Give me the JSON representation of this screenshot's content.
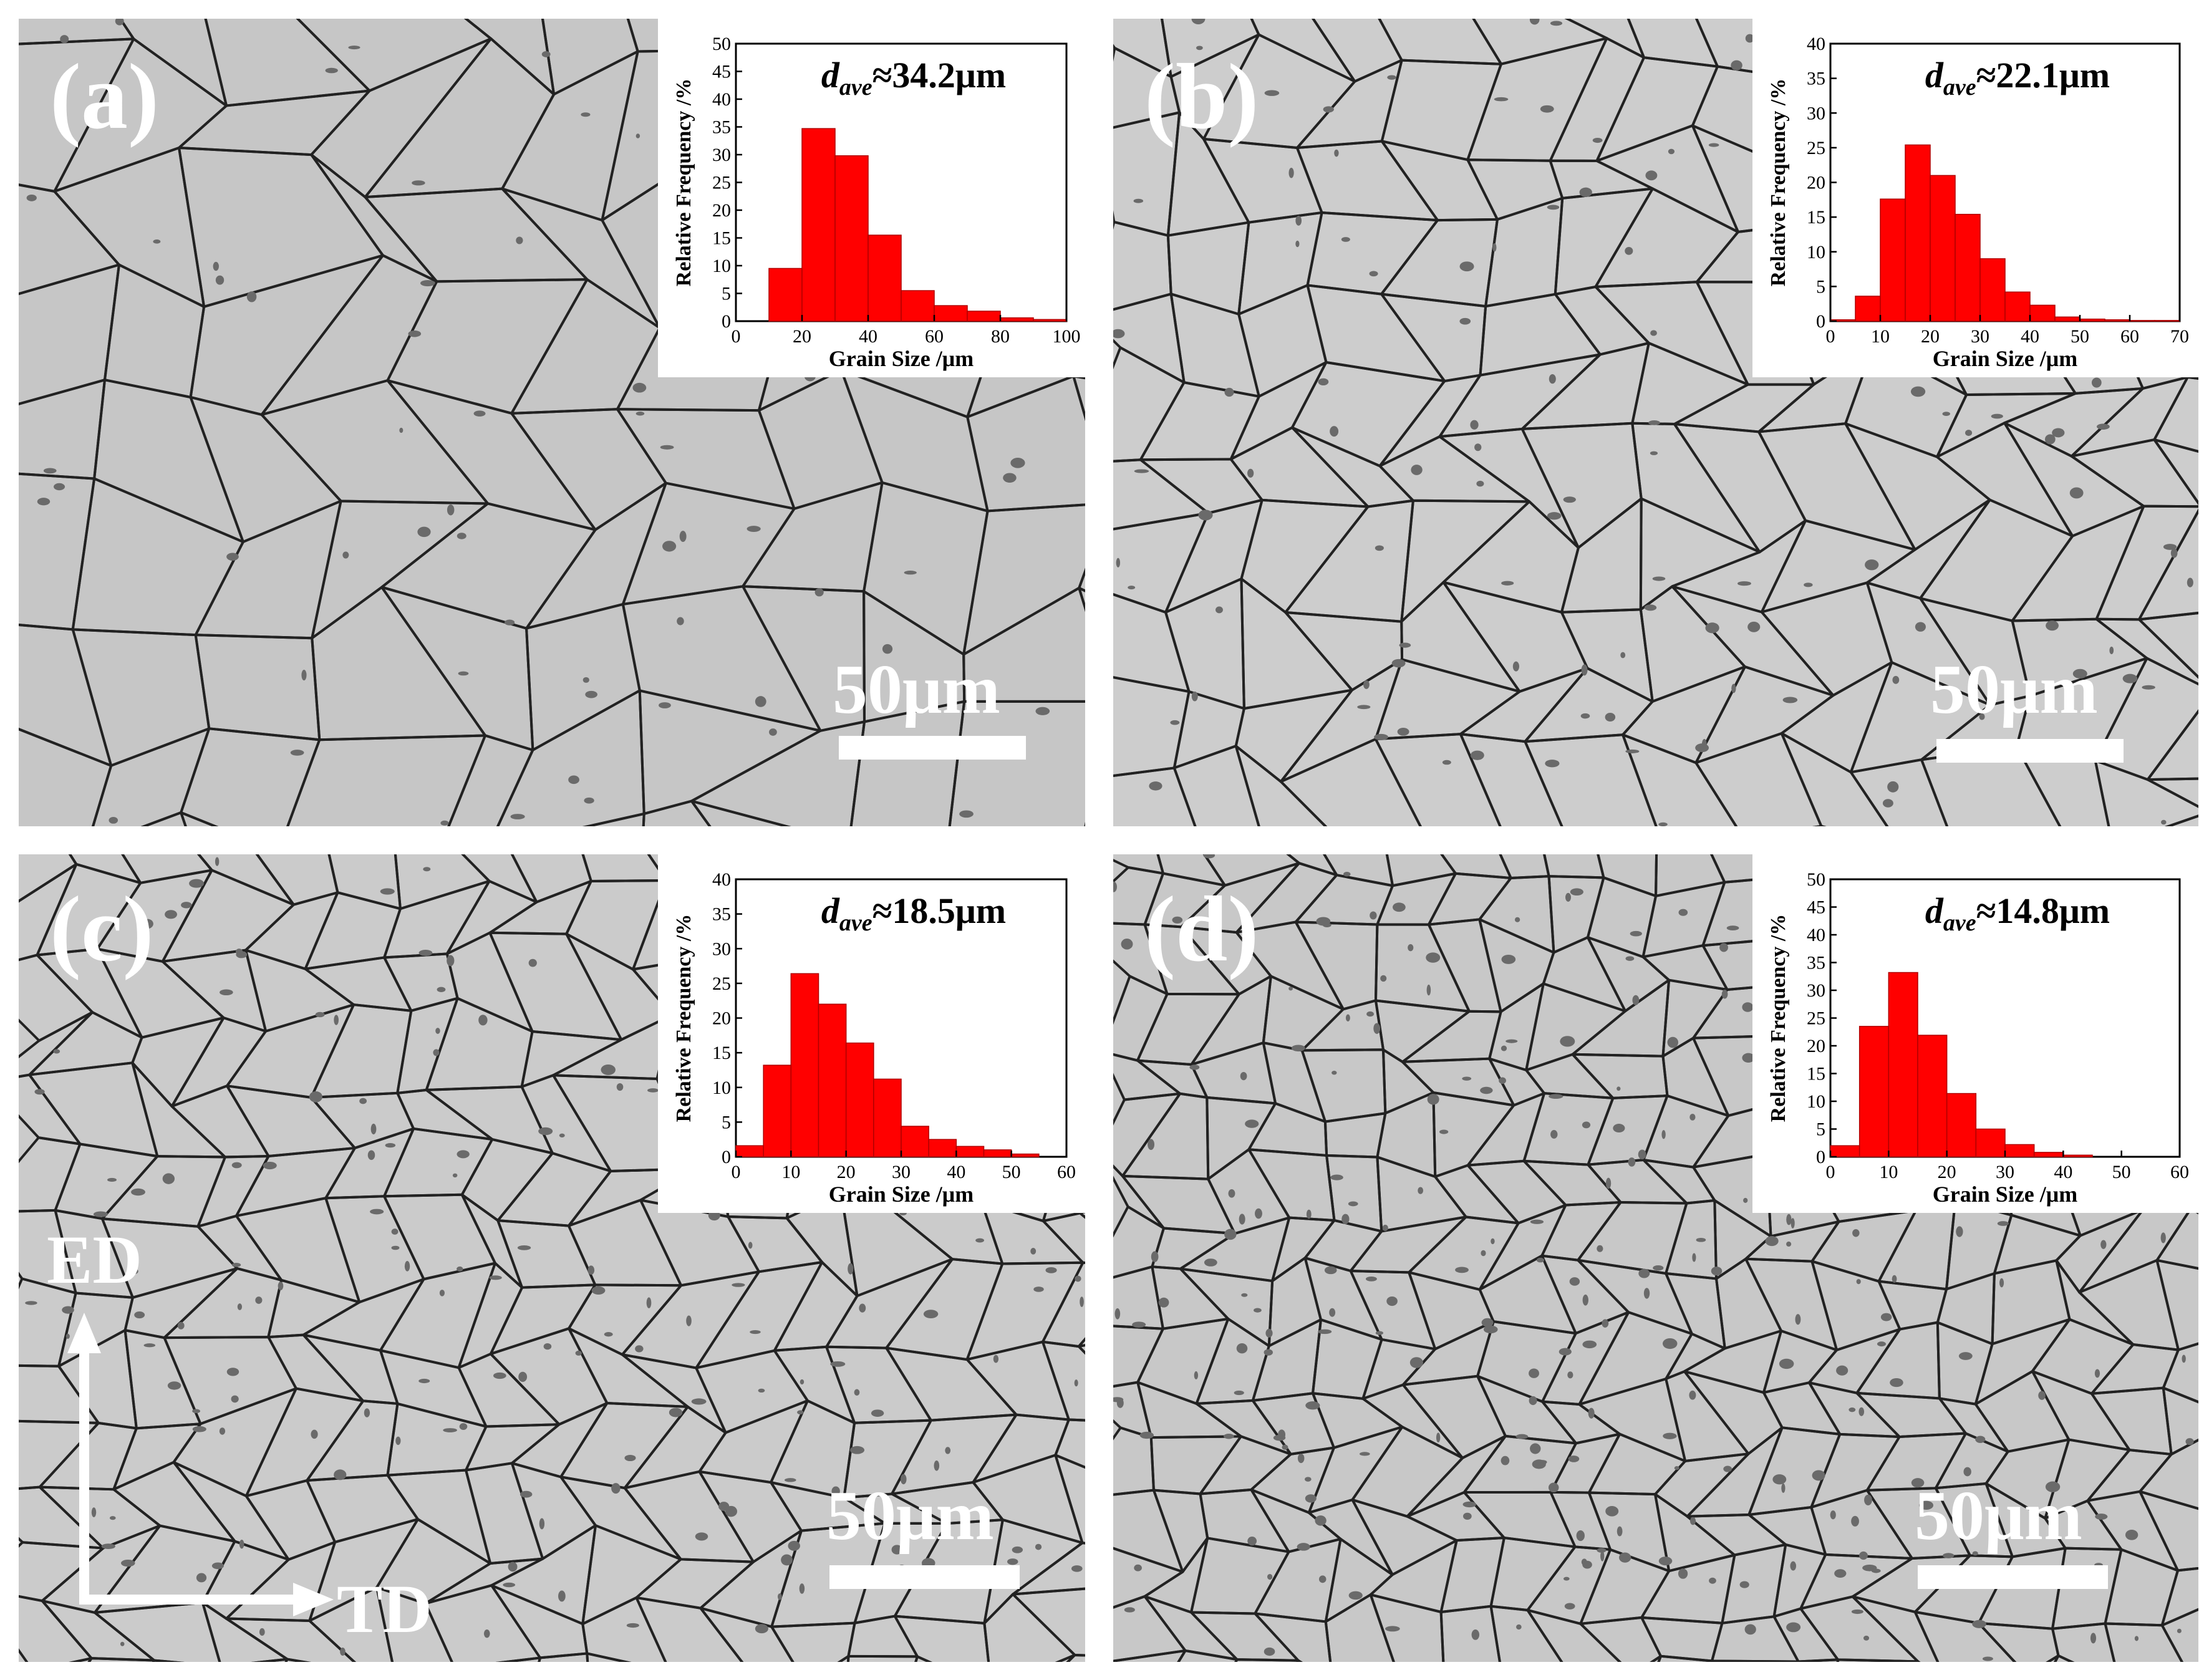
{
  "panels": [
    {
      "label": "(a)",
      "scale_text": "50μm",
      "annotation_symbol": "d",
      "annotation_subscript": "ave",
      "annotation_value": "≈34.2μm"
    },
    {
      "label": "(b)",
      "scale_text": "50μm",
      "annotation_symbol": "d",
      "annotation_subscript": "ave",
      "annotation_value": "≈22.1μm"
    },
    {
      "label": "(c)",
      "scale_text": "50μm",
      "annotation_symbol": "d",
      "annotation_subscript": "ave",
      "annotation_value": "≈18.5μm"
    },
    {
      "label": "(d)",
      "scale_text": "50μm",
      "annotation_symbol": "d",
      "annotation_subscript": "ave",
      "annotation_value": "≈14.8μm"
    }
  ],
  "direction_axes": {
    "vertical": "ED",
    "horizontal": "TD"
  },
  "colors": {
    "bar_fill": "#ff0000",
    "bar_stroke": "#b00000",
    "micrograph_bg": "#c9c9c9",
    "grain_boundary": "#222222"
  },
  "chart_data": [
    {
      "type": "bar",
      "xlabel": "Grain Size /μm",
      "ylabel": "Relative Frequency /%",
      "xlim": [
        0,
        100
      ],
      "ylim": [
        0,
        50
      ],
      "xticks": [
        0,
        20,
        40,
        60,
        80,
        100
      ],
      "yticks": [
        0,
        5,
        10,
        15,
        20,
        25,
        30,
        35,
        40,
        45,
        50
      ],
      "bin_width": 10,
      "x": [
        15,
        25,
        35,
        45,
        55,
        65,
        75,
        85,
        95
      ],
      "values": [
        9.5,
        34.7,
        29.8,
        15.5,
        5.5,
        2.8,
        1.8,
        0.6,
        0.3
      ],
      "annotation": "dave≈34.2μm"
    },
    {
      "type": "bar",
      "xlabel": "Grain Size /μm",
      "ylabel": "Relative Frequency /%",
      "xlim": [
        0,
        70
      ],
      "ylim": [
        0,
        40
      ],
      "xticks": [
        0,
        10,
        20,
        30,
        40,
        50,
        60,
        70
      ],
      "yticks": [
        0,
        5,
        10,
        15,
        20,
        25,
        30,
        35,
        40
      ],
      "bin_width": 5,
      "x": [
        2.5,
        7.5,
        12.5,
        17.5,
        22.5,
        27.5,
        32.5,
        37.5,
        42.5,
        47.5,
        52.5,
        57.5,
        62.5,
        67.5
      ],
      "values": [
        0.2,
        3.6,
        17.6,
        25.4,
        21.0,
        15.4,
        9.0,
        4.2,
        2.3,
        0.6,
        0.3,
        0.2,
        0.1,
        0.1
      ],
      "annotation": "dave≈22.1μm"
    },
    {
      "type": "bar",
      "xlabel": "Grain Size /μm",
      "ylabel": "Relative Frequency /%",
      "xlim": [
        0,
        60
      ],
      "ylim": [
        0,
        40
      ],
      "xticks": [
        0,
        10,
        20,
        30,
        40,
        50,
        60
      ],
      "yticks": [
        0,
        5,
        10,
        15,
        20,
        25,
        30,
        35,
        40
      ],
      "bin_width": 5,
      "x": [
        2.5,
        7.5,
        12.5,
        17.5,
        22.5,
        27.5,
        32.5,
        37.5,
        42.5,
        47.5,
        52.5
      ],
      "values": [
        1.6,
        13.2,
        26.4,
        22.0,
        16.4,
        11.2,
        4.4,
        2.5,
        1.5,
        1.0,
        0.4
      ],
      "annotation": "dave≈18.5μm"
    },
    {
      "type": "bar",
      "xlabel": "Grain Size /μm",
      "ylabel": "Relative Frequency /%",
      "xlim": [
        0,
        60
      ],
      "ylim": [
        0,
        50
      ],
      "xticks": [
        0,
        10,
        20,
        30,
        40,
        50,
        60
      ],
      "yticks": [
        0,
        5,
        10,
        15,
        20,
        25,
        30,
        35,
        40,
        45,
        50
      ],
      "bin_width": 5,
      "x": [
        2.5,
        7.5,
        12.5,
        17.5,
        22.5,
        27.5,
        32.5,
        37.5,
        42.5
      ],
      "values": [
        2.0,
        23.5,
        33.2,
        21.9,
        11.4,
        5.0,
        2.2,
        0.8,
        0.3
      ],
      "annotation": "dave≈14.8μm"
    }
  ]
}
